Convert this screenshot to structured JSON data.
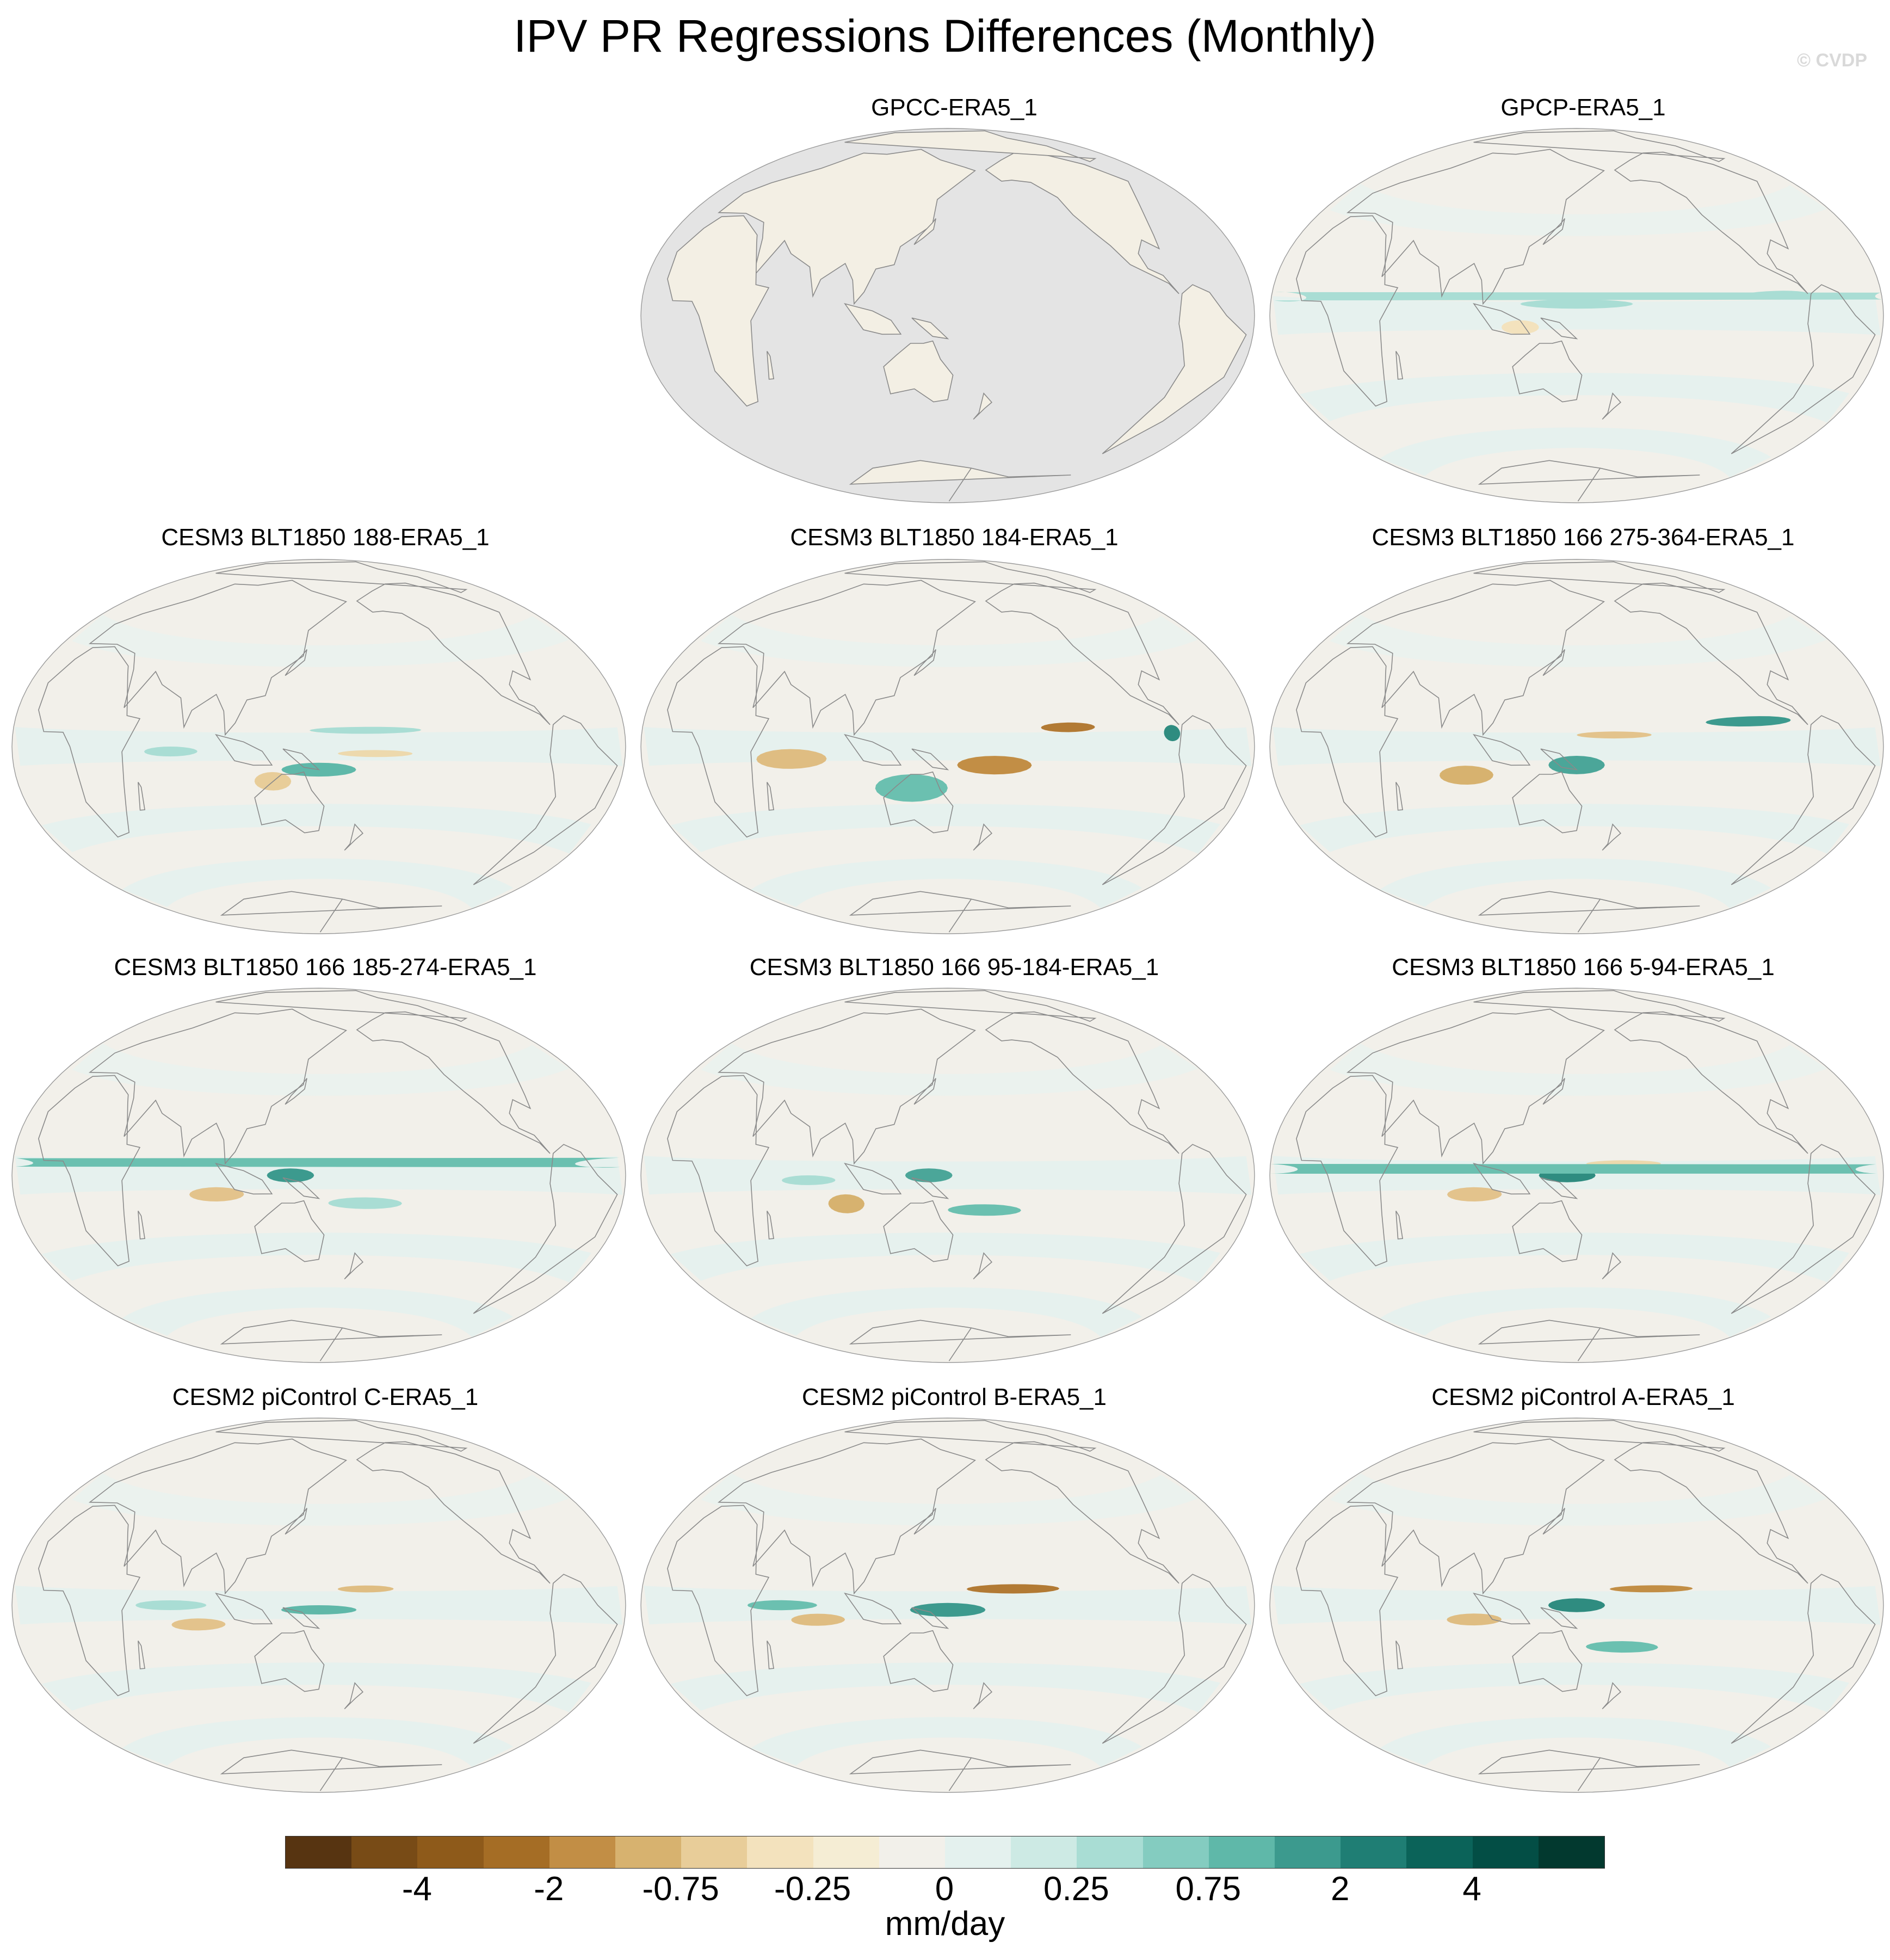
{
  "title": "IPV PR Regressions Differences (Monthly)",
  "watermark": "© CVDP",
  "panels": [
    {
      "title": "GPCC-ERA5_1",
      "variant": "land",
      "pattern": []
    },
    {
      "title": "GPCP-ERA5_1",
      "variant": "ocean",
      "pattern": [
        {
          "lon": 150,
          "lat": 5,
          "w": 60,
          "h": 4,
          "c": "#a9ddd4"
        },
        {
          "lon": -100,
          "lat": 8,
          "w": 40,
          "h": 3,
          "c": "#a9ddd4"
        },
        {
          "lon": -20,
          "lat": 6,
          "w": 30,
          "h": 3,
          "c": "#a9ddd4"
        },
        {
          "lon": 120,
          "lat": -5,
          "w": 20,
          "h": 6,
          "c": "#f3e2bd"
        }
      ]
    },
    {
      "title": "CESM3 BLT1850 188-ERA5_1",
      "variant": "ocean",
      "pattern": [
        {
          "lon": 150,
          "lat": -10,
          "w": 40,
          "h": 6,
          "c": "#5fb8a9"
        },
        {
          "lon": 175,
          "lat": 7,
          "w": 60,
          "h": 3,
          "c": "#a9ddd4"
        },
        {
          "lon": 180,
          "lat": -3,
          "w": 40,
          "h": 3,
          "c": "#edd9ad"
        },
        {
          "lon": 125,
          "lat": -15,
          "w": 20,
          "h": 8,
          "c": "#e8cd99"
        },
        {
          "lon": 70,
          "lat": -2,
          "w": 30,
          "h": 4,
          "c": "#a9ddd4"
        }
      ]
    },
    {
      "title": "CESM3 BLT1850 184-ERA5_1",
      "variant": "ocean",
      "pattern": [
        {
          "lon": -145,
          "lat": 8,
          "w": 30,
          "h": 4,
          "c": "#b27a34"
        },
        {
          "lon": 175,
          "lat": -8,
          "w": 40,
          "h": 8,
          "c": "#c28e45"
        },
        {
          "lon": 130,
          "lat": -18,
          "w": 40,
          "h": 12,
          "c": "#6bc0b0"
        },
        {
          "lon": 65,
          "lat": -5,
          "w": 40,
          "h": 8,
          "c": "#dfbd82"
        },
        {
          "lon": -85,
          "lat": 5,
          "w": 10,
          "h": 6,
          "c": "#2f8c80"
        }
      ]
    },
    {
      "title": "CESM3 BLT1850 166 275-364-ERA5_1",
      "variant": "ocean",
      "pattern": [
        {
          "lon": -115,
          "lat": 10,
          "w": 50,
          "h": 4,
          "c": "#3c9a8e"
        },
        {
          "lon": 150,
          "lat": -8,
          "w": 30,
          "h": 8,
          "c": "#4ba699"
        },
        {
          "lon": 170,
          "lat": 5,
          "w": 40,
          "h": 3,
          "c": "#e3c38c"
        },
        {
          "lon": 90,
          "lat": -12,
          "w": 30,
          "h": 8,
          "c": "#d7b26f"
        }
      ]
    },
    {
      "title": "CESM3 BLT1850 166 185-274-ERA5_1",
      "variant": "ocean",
      "pattern": [
        {
          "lon": 135,
          "lat": 0,
          "w": 25,
          "h": 6,
          "c": "#3c9a8e"
        },
        {
          "lon": 175,
          "lat": -12,
          "w": 40,
          "h": 5,
          "c": "#a9ddd4"
        },
        {
          "lon": 95,
          "lat": -8,
          "w": 30,
          "h": 6,
          "c": "#e3c38c"
        },
        {
          "lon": -40,
          "lat": 4,
          "w": 50,
          "h": 3,
          "c": "#6bc0b0"
        }
      ]
    },
    {
      "title": "CESM3 BLT1850 166 95-184-ERA5_1",
      "variant": "ocean",
      "pattern": [
        {
          "lon": 140,
          "lat": 0,
          "w": 25,
          "h": 6,
          "c": "#4ba699"
        },
        {
          "lon": 95,
          "lat": -12,
          "w": 20,
          "h": 8,
          "c": "#d7b26f"
        },
        {
          "lon": 170,
          "lat": -15,
          "w": 40,
          "h": 5,
          "c": "#6bc0b0"
        },
        {
          "lon": 75,
          "lat": -2,
          "w": 30,
          "h": 4,
          "c": "#a9ddd4"
        }
      ]
    },
    {
      "title": "CESM3 BLT1850 166 5-94-ERA5_1",
      "variant": "ocean",
      "pattern": [
        {
          "lon": 145,
          "lat": 0,
          "w": 30,
          "h": 6,
          "c": "#2f8c80"
        },
        {
          "lon": 175,
          "lat": 5,
          "w": 40,
          "h": 3,
          "c": "#edd9ad"
        },
        {
          "lon": 95,
          "lat": -8,
          "w": 30,
          "h": 6,
          "c": "#e3c38c"
        },
        {
          "lon": -30,
          "lat": 2,
          "w": 40,
          "h": 3,
          "c": "#6bc0b0"
        }
      ]
    },
    {
      "title": "CESM2 piControl C-ERA5_1",
      "variant": "ocean",
      "pattern": [
        {
          "lon": 175,
          "lat": 7,
          "w": 30,
          "h": 3,
          "c": "#dfbd82"
        },
        {
          "lon": 150,
          "lat": -2,
          "w": 40,
          "h": 4,
          "c": "#5fb8a9"
        },
        {
          "lon": 85,
          "lat": -8,
          "w": 30,
          "h": 5,
          "c": "#e3c38c"
        },
        {
          "lon": 70,
          "lat": 0,
          "w": 40,
          "h": 4,
          "c": "#a9ddd4"
        }
      ]
    },
    {
      "title": "CESM2 piControl B-ERA5_1",
      "variant": "ocean",
      "pattern": [
        {
          "lon": -175,
          "lat": 7,
          "w": 50,
          "h": 4,
          "c": "#b27a34"
        },
        {
          "lon": 150,
          "lat": -2,
          "w": 40,
          "h": 6,
          "c": "#3c9a8e"
        },
        {
          "lon": 80,
          "lat": -6,
          "w": 30,
          "h": 5,
          "c": "#dfbd82"
        },
        {
          "lon": 60,
          "lat": 0,
          "w": 40,
          "h": 4,
          "c": "#6bc0b0"
        }
      ]
    },
    {
      "title": "CESM2 piControl A-ERA5_1",
      "variant": "ocean",
      "pattern": [
        {
          "lon": -170,
          "lat": 7,
          "w": 45,
          "h": 3,
          "c": "#c28e45"
        },
        {
          "lon": 150,
          "lat": 0,
          "w": 30,
          "h": 6,
          "c": "#2f8c80"
        },
        {
          "lon": 95,
          "lat": -6,
          "w": 30,
          "h": 5,
          "c": "#dfbd82"
        },
        {
          "lon": 175,
          "lat": -18,
          "w": 40,
          "h": 5,
          "c": "#6bc0b0"
        }
      ]
    }
  ],
  "colorbar": {
    "colors": [
      "#573411",
      "#784b16",
      "#8e5a1a",
      "#a56d25",
      "#c28e45",
      "#d7b26f",
      "#e8cd99",
      "#f3e2bd",
      "#f5edd4",
      "#f2f0ea",
      "#e4f1ee",
      "#cdeae4",
      "#a9ddd4",
      "#84ccc0",
      "#5fb8a9",
      "#3c9a8e",
      "#1f7e74",
      "#0b6359",
      "#034e45",
      "#02392f"
    ],
    "tick_labels": [
      "-4",
      "-2",
      "-0.75",
      "-0.25",
      "0",
      "0.25",
      "0.75",
      "2",
      "4"
    ],
    "units": "mm/day"
  }
}
